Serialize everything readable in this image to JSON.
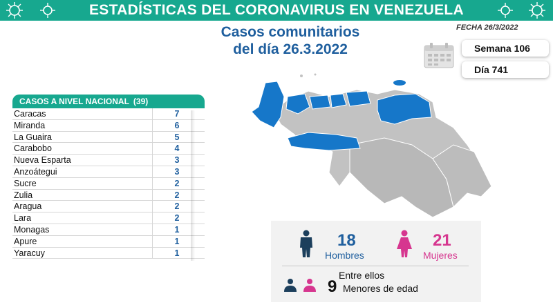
{
  "header": {
    "title": "ESTADÍSTICAS DEL CORONAVIRUS EN VENEZUELA"
  },
  "subtitle": {
    "line1": "Casos comunitarios",
    "line2": "del día 26.3.2022"
  },
  "fecha": "FECHA 26/3/2022",
  "cards": {
    "semana": "Semana 106",
    "dia": "Día 741"
  },
  "table": {
    "title": "CASOS A NIVEL NACIONAL",
    "total": "(39)",
    "rows": [
      {
        "name": "Caracas",
        "value": "7"
      },
      {
        "name": "Miranda",
        "value": "6"
      },
      {
        "name": "La Guaira",
        "value": "5"
      },
      {
        "name": "Carabobo",
        "value": "4"
      },
      {
        "name": "Nueva Esparta",
        "value": "3"
      },
      {
        "name": "Anzoátegui",
        "value": "3"
      },
      {
        "name": "Sucre",
        "value": "2"
      },
      {
        "name": "Zulia",
        "value": "2"
      },
      {
        "name": "Aragua",
        "value": "2"
      },
      {
        "name": "Lara",
        "value": "2"
      },
      {
        "name": "Monagas",
        "value": "1"
      },
      {
        "name": "Apure",
        "value": "1"
      },
      {
        "name": "Yaracuy",
        "value": "1"
      }
    ]
  },
  "stats": {
    "men_count": "18",
    "men_label": "Hombres",
    "women_count": "21",
    "women_label": "Mujeres",
    "among": "Entre ellos",
    "minors_count": "9",
    "minors_label": "Menores de edad"
  },
  "colors": {
    "teal": "#17a88f",
    "blue": "#1f5f9e",
    "map_highlight": "#1677c9",
    "map_base": "#c2c2c2",
    "women": "#d6368f",
    "men": "#1c3f5c"
  }
}
